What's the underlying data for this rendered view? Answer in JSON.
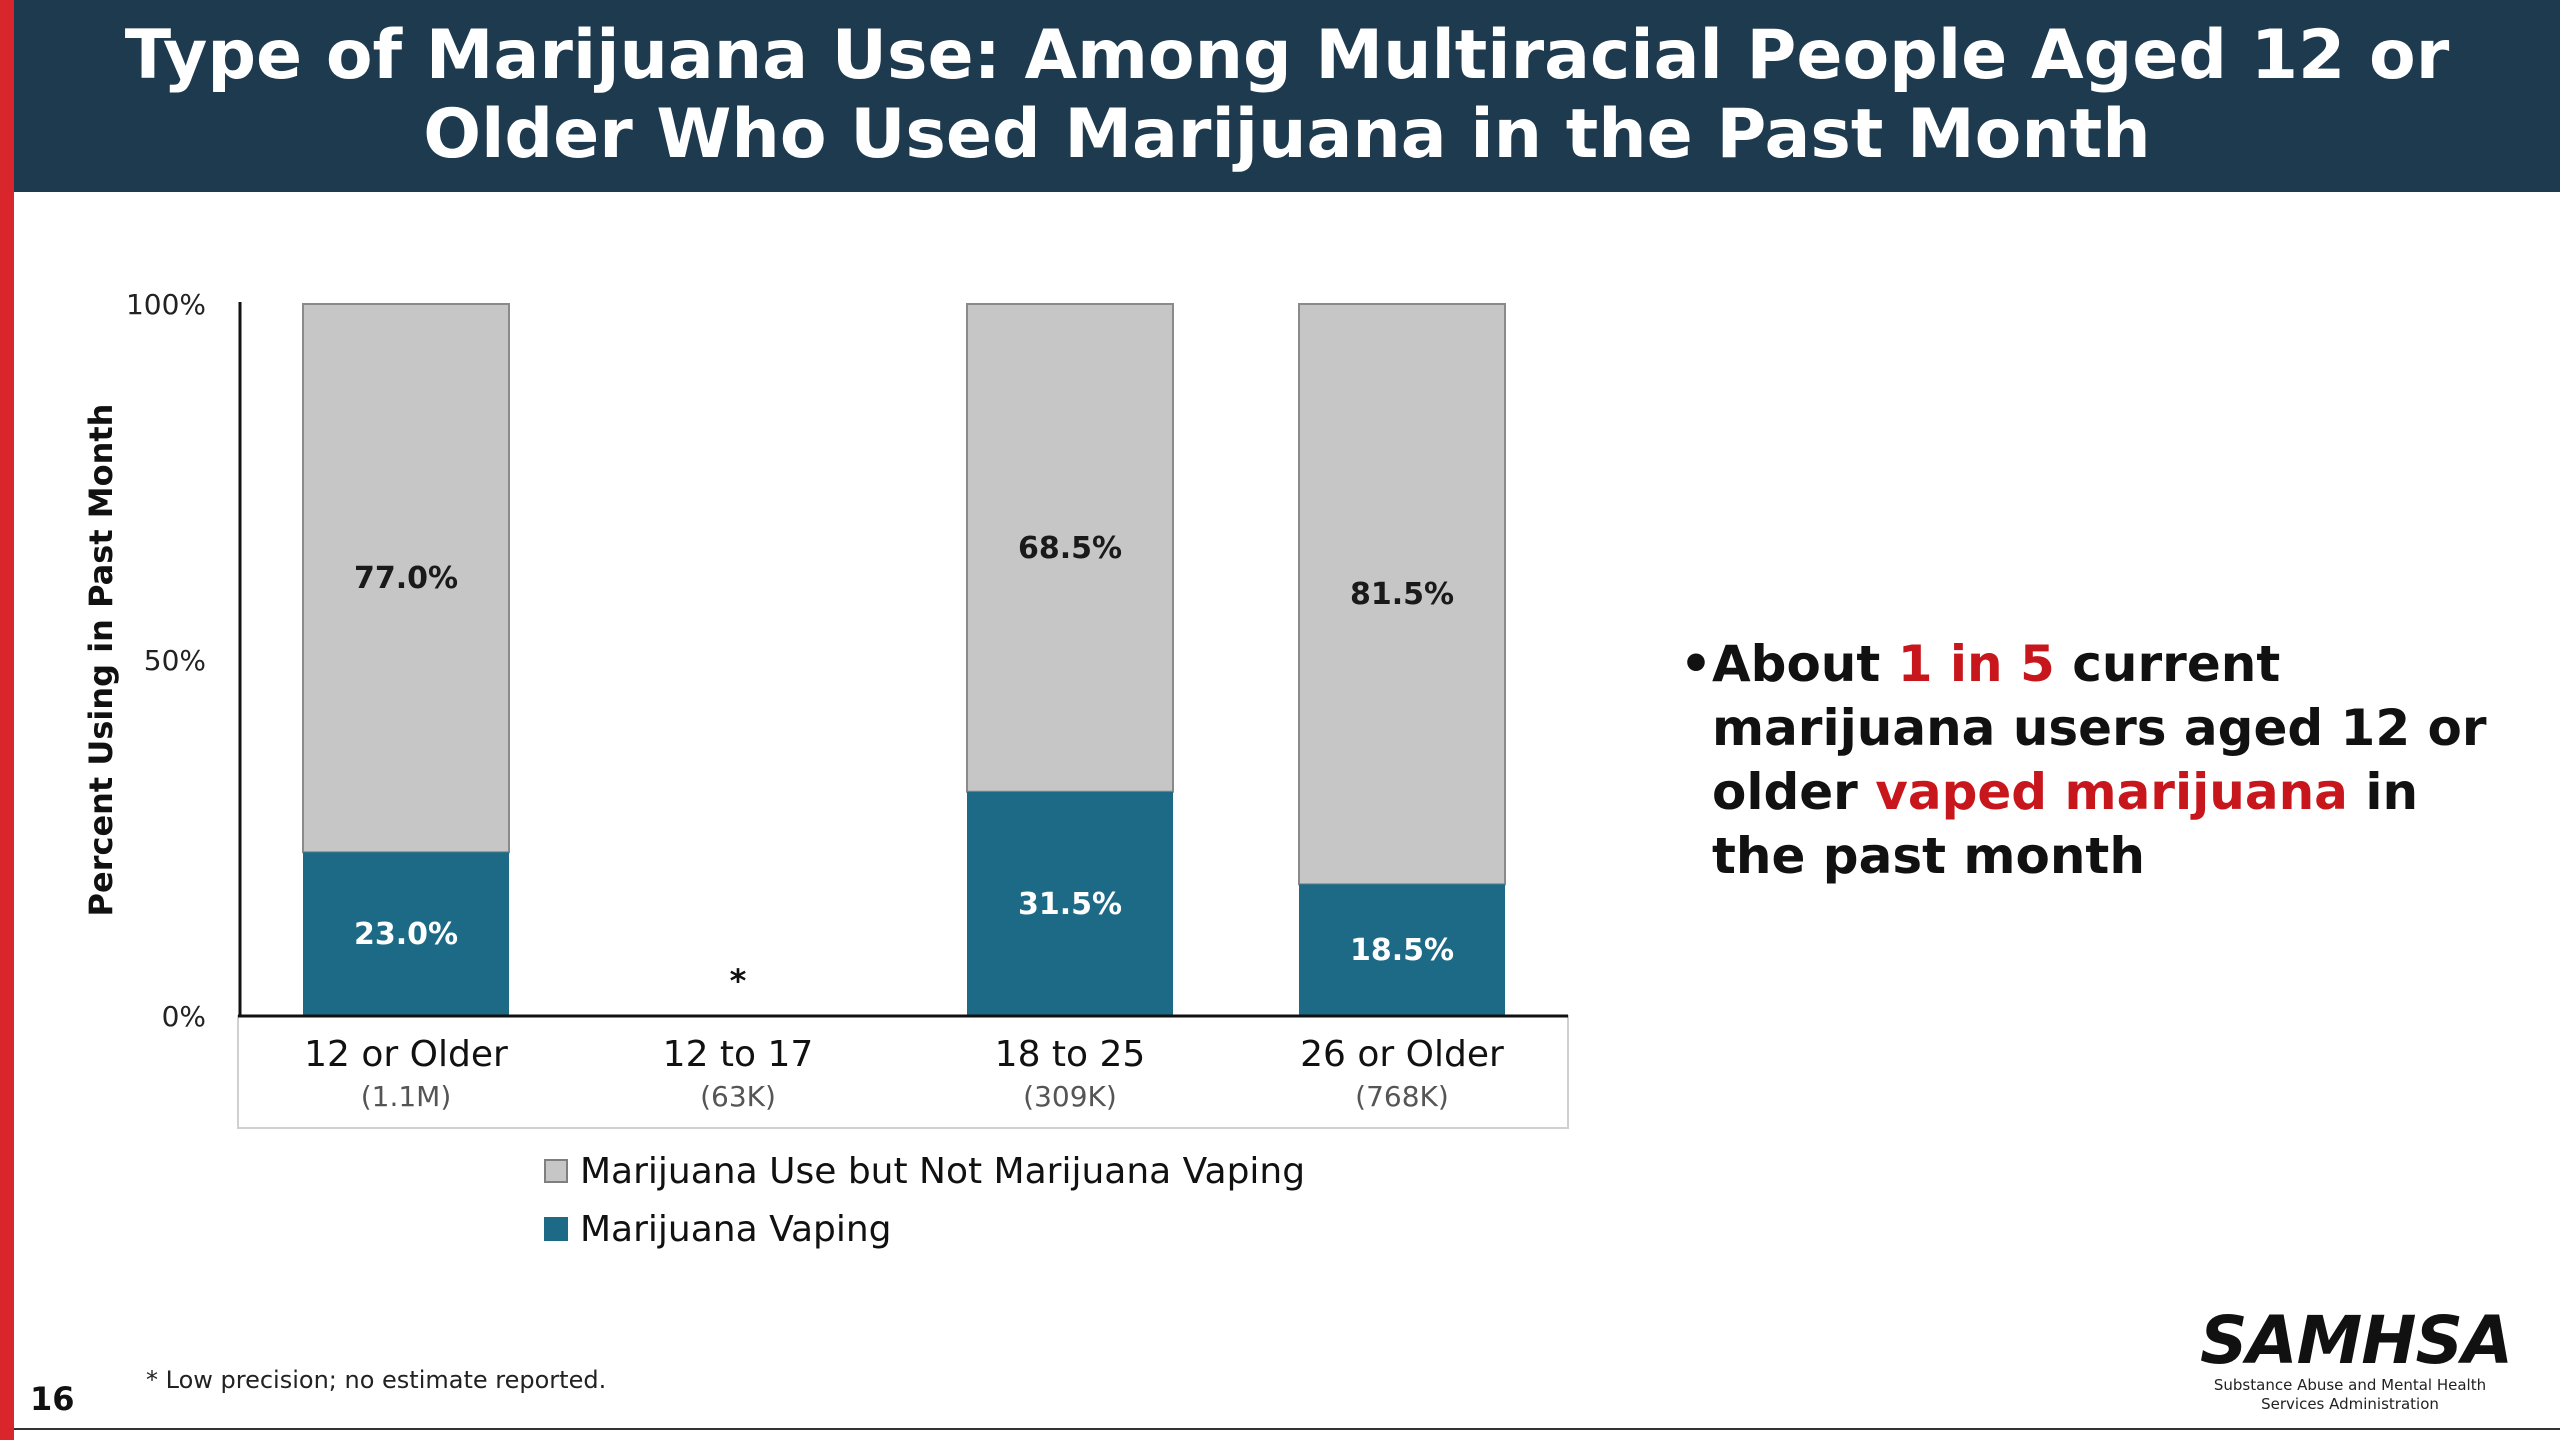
{
  "slide": {
    "title": "Type of Marijuana Use: Among Multiracial People Aged 12 or Older Who Used Marijuana in the Past Month",
    "page_number": "16",
    "footnote": "* Low precision; no estimate reported.",
    "accent_color": "#d9262c",
    "title_bar_color": "#1e3a4f"
  },
  "callout": {
    "bullet": "•",
    "text_1": "About ",
    "highlight_1": "1 in 5",
    "text_2": " current marijuana users aged 12 or older ",
    "highlight_2": "vaped marijuana",
    "text_3": " in the past month",
    "highlight_color": "#c8161d"
  },
  "logo": {
    "name": "SAMHSA",
    "subtitle_1": "Substance Abuse and Mental Health",
    "subtitle_2": "Services Administration"
  },
  "chart_data": {
    "type": "bar",
    "stacked": true,
    "ylabel": "Percent Using in Past Month",
    "ylim": [
      0,
      100
    ],
    "yticks": [
      0,
      50,
      100
    ],
    "ytick_labels": [
      "0%",
      "50%",
      "100%"
    ],
    "categories": [
      "12 or Older",
      "12 to 17",
      "18 to 25",
      "26 or Older"
    ],
    "category_sublabels": [
      "(1.1M)",
      "(63K)",
      "(309K)",
      "(768K)"
    ],
    "series": [
      {
        "name": "Marijuana Vaping",
        "color": "#1c6a85",
        "values": [
          23.0,
          null,
          31.5,
          18.5
        ],
        "labels": [
          "23.0%",
          "*",
          "31.5%",
          "18.5%"
        ]
      },
      {
        "name": "Marijuana Use but Not Marijuana Vaping",
        "color": "#c6c6c6",
        "values": [
          77.0,
          null,
          68.5,
          81.5
        ],
        "labels": [
          "77.0%",
          "",
          "68.5%",
          "81.5%"
        ]
      }
    ],
    "legend_order": [
      1,
      0
    ],
    "legend_position": "bottom",
    "grid": false
  }
}
